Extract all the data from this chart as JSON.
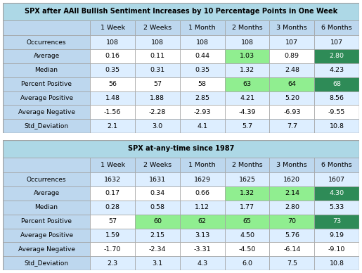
{
  "table1_title": "SPX after AAII Bullish Sentiment Increases by 10 Percentage Points in One Week",
  "table2_title": "SPX at-any-time since 1987",
  "col_headers": [
    "",
    "1 Week",
    "2 Weeks",
    "1 Month",
    "2 Months",
    "3 Months",
    "6 Months"
  ],
  "table1_rows": [
    {
      "label": "Occurrences",
      "values": [
        "108",
        "108",
        "108",
        "108",
        "107",
        "107"
      ]
    },
    {
      "label": "Average",
      "values": [
        "0.16",
        "0.11",
        "0.44",
        "1.03",
        "0.89",
        "2.80"
      ]
    },
    {
      "label": "Median",
      "values": [
        "0.35",
        "0.31",
        "0.35",
        "1.32",
        "2.48",
        "4.23"
      ]
    },
    {
      "label": "Percent Positive",
      "values": [
        "56",
        "57",
        "58",
        "63",
        "64",
        "68"
      ]
    },
    {
      "label": "Average Positive",
      "values": [
        "1.48",
        "1.88",
        "2.85",
        "4.21",
        "5.20",
        "8.56"
      ]
    },
    {
      "label": "Average Negative",
      "values": [
        "-1.56",
        "-2.28",
        "-2.93",
        "-4.39",
        "-6.93",
        "-9.55"
      ]
    },
    {
      "label": "Std_Deviation",
      "values": [
        "2.1",
        "3.0",
        "4.1",
        "5.7",
        "7.7",
        "10.8"
      ]
    }
  ],
  "table1_highlights": {
    "Average": {
      "cols": [
        3,
        5
      ],
      "last": 5
    },
    "Percent Positive": {
      "cols": [
        3,
        4,
        5
      ],
      "last": 5
    }
  },
  "table2_rows": [
    {
      "label": "Occurrences",
      "values": [
        "1632",
        "1631",
        "1629",
        "1625",
        "1620",
        "1607"
      ]
    },
    {
      "label": "Average",
      "values": [
        "0.17",
        "0.34",
        "0.66",
        "1.32",
        "2.14",
        "4.30"
      ]
    },
    {
      "label": "Median",
      "values": [
        "0.28",
        "0.58",
        "1.12",
        "1.77",
        "2.80",
        "5.33"
      ]
    },
    {
      "label": "Percent Positive",
      "values": [
        "57",
        "60",
        "62",
        "65",
        "70",
        "73"
      ]
    },
    {
      "label": "Average Positive",
      "values": [
        "1.59",
        "2.15",
        "3.13",
        "4.50",
        "5.76",
        "9.19"
      ]
    },
    {
      "label": "Average Negative",
      "values": [
        "-1.70",
        "-2.34",
        "-3.31",
        "-4.50",
        "-6.14",
        "-9.10"
      ]
    },
    {
      "label": "Std_Deviation",
      "values": [
        "2.3",
        "3.1",
        "4.3",
        "6.0",
        "7.5",
        "10.8"
      ]
    }
  ],
  "table2_highlights": {
    "Average": {
      "cols": [
        3,
        4,
        5
      ],
      "last": 5
    },
    "Percent Positive": {
      "cols": [
        1,
        2,
        3,
        4,
        5
      ],
      "last": 5
    }
  },
  "color_title_bg": "#ADD8E6",
  "color_header_bg": "#BDD7EE",
  "color_label_bg": "#BDD7EE",
  "color_row_even": "#DDEEFF",
  "color_row_odd": "#FFFFFF",
  "color_hl_light": "#90EE90",
  "color_hl_dark": "#2E8B57",
  "color_border": "#A0A0A0",
  "color_text": "#000000",
  "color_text_dark_hl": "#FFFFFF"
}
